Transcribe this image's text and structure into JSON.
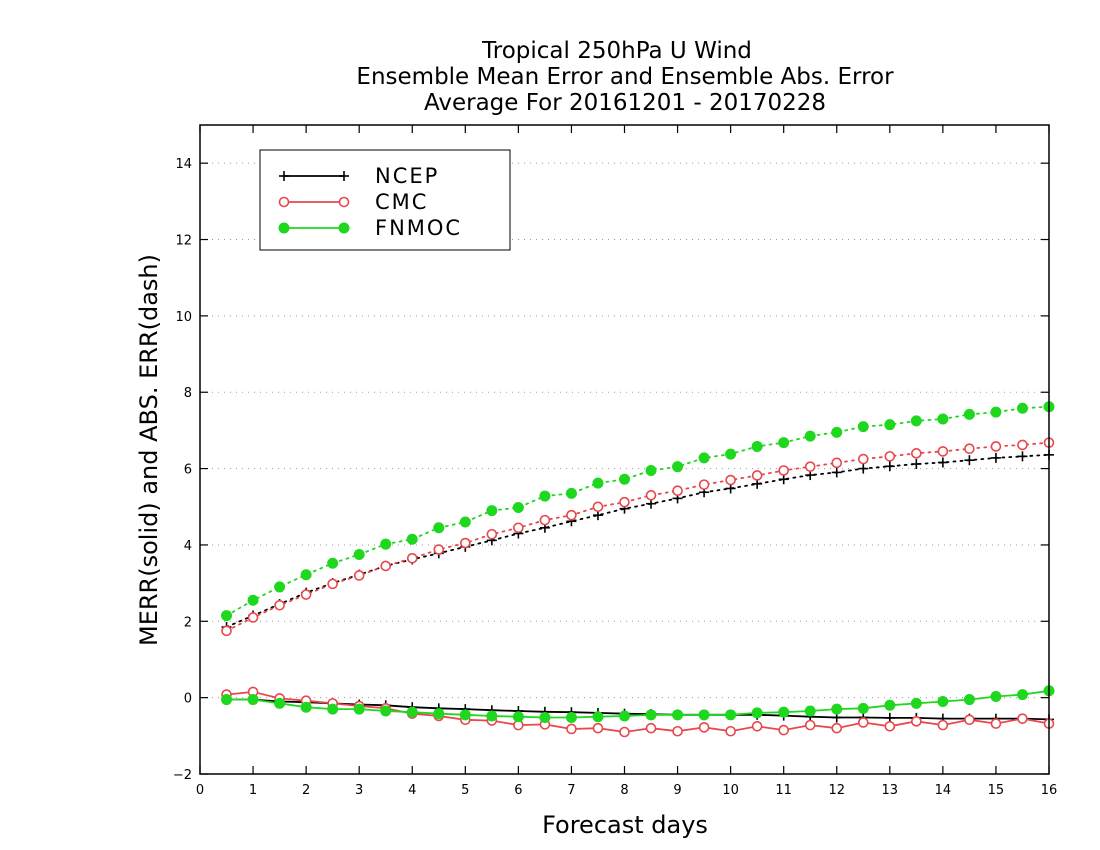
{
  "chart_data": {
    "type": "line",
    "title": [
      "Tropical 250hPa U Wind",
      "Ensemble Mean Error and Ensemble Abs. Error",
      "Average For 20161201 - 20170228"
    ],
    "xlabel": "Forecast days",
    "ylabel": "MERR(solid) and ABS. ERR(dash)",
    "xlim": [
      0,
      16
    ],
    "ylim": [
      -2,
      15
    ],
    "xticks": [
      0,
      1,
      2,
      3,
      4,
      5,
      6,
      7,
      8,
      9,
      10,
      11,
      12,
      13,
      14,
      15,
      16
    ],
    "yticks": [
      -2,
      0,
      2,
      4,
      6,
      8,
      10,
      12,
      14
    ],
    "grid": "horizontal dotted",
    "legend_position": "top-left",
    "x": [
      0.5,
      1,
      1.5,
      2,
      2.5,
      3,
      3.5,
      4,
      4.5,
      5,
      5.5,
      6,
      6.5,
      7,
      7.5,
      8,
      8.5,
      9,
      9.5,
      10,
      10.5,
      11,
      11.5,
      12,
      12.5,
      13,
      13.5,
      14,
      14.5,
      15,
      15.5,
      16
    ],
    "series": [
      {
        "name": "NCEP",
        "color": "#000000",
        "marker": "plus",
        "mean_error": [
          -0.05,
          -0.05,
          -0.1,
          -0.12,
          -0.15,
          -0.18,
          -0.2,
          -0.25,
          -0.28,
          -0.3,
          -0.33,
          -0.35,
          -0.37,
          -0.38,
          -0.4,
          -0.42,
          -0.43,
          -0.45,
          -0.45,
          -0.45,
          -0.45,
          -0.47,
          -0.5,
          -0.52,
          -0.52,
          -0.53,
          -0.53,
          -0.55,
          -0.55,
          -0.55,
          -0.55,
          -0.57
        ],
        "abs_error": [
          1.85,
          2.15,
          2.45,
          2.75,
          3.0,
          3.22,
          3.45,
          3.62,
          3.78,
          3.95,
          4.12,
          4.3,
          4.45,
          4.62,
          4.78,
          4.95,
          5.08,
          5.22,
          5.38,
          5.48,
          5.6,
          5.72,
          5.83,
          5.9,
          6.0,
          6.06,
          6.12,
          6.16,
          6.22,
          6.28,
          6.32,
          6.36
        ]
      },
      {
        "name": "CMC",
        "color": "#e8474c",
        "marker": "open-circle",
        "mean_error": [
          0.08,
          0.15,
          -0.02,
          -0.08,
          -0.15,
          -0.22,
          -0.28,
          -0.42,
          -0.48,
          -0.58,
          -0.6,
          -0.72,
          -0.7,
          -0.82,
          -0.8,
          -0.9,
          -0.8,
          -0.88,
          -0.78,
          -0.88,
          -0.75,
          -0.85,
          -0.72,
          -0.8,
          -0.65,
          -0.75,
          -0.62,
          -0.72,
          -0.58,
          -0.68,
          -0.55,
          -0.68
        ],
        "abs_error": [
          1.75,
          2.1,
          2.42,
          2.7,
          2.98,
          3.2,
          3.45,
          3.65,
          3.88,
          4.05,
          4.28,
          4.45,
          4.65,
          4.78,
          5.0,
          5.12,
          5.3,
          5.42,
          5.58,
          5.7,
          5.82,
          5.95,
          6.05,
          6.15,
          6.25,
          6.32,
          6.4,
          6.45,
          6.52,
          6.58,
          6.62,
          6.68
        ]
      },
      {
        "name": "FNMOC",
        "color": "#1ed71e",
        "marker": "filled-circle",
        "mean_error": [
          -0.05,
          -0.05,
          -0.15,
          -0.25,
          -0.3,
          -0.3,
          -0.35,
          -0.38,
          -0.42,
          -0.45,
          -0.48,
          -0.5,
          -0.52,
          -0.52,
          -0.5,
          -0.48,
          -0.45,
          -0.45,
          -0.45,
          -0.45,
          -0.4,
          -0.38,
          -0.35,
          -0.3,
          -0.28,
          -0.2,
          -0.15,
          -0.1,
          -0.05,
          0.03,
          0.08,
          0.18
        ],
        "abs_error": [
          2.15,
          2.55,
          2.9,
          3.22,
          3.52,
          3.75,
          4.02,
          4.15,
          4.45,
          4.6,
          4.9,
          4.98,
          5.28,
          5.35,
          5.62,
          5.72,
          5.95,
          6.05,
          6.28,
          6.38,
          6.58,
          6.68,
          6.85,
          6.95,
          7.1,
          7.15,
          7.25,
          7.3,
          7.42,
          7.48,
          7.58,
          7.62
        ]
      }
    ]
  }
}
